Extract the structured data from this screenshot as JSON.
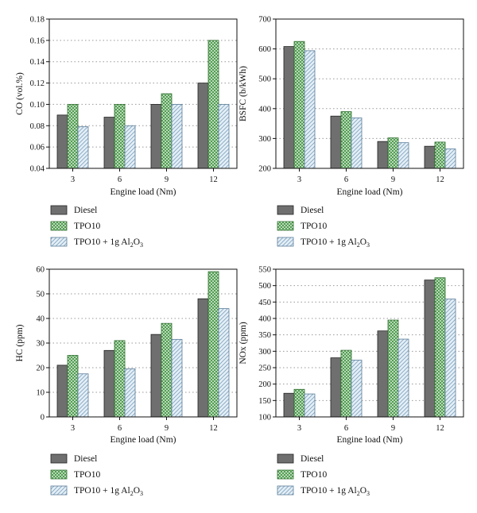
{
  "legend": {
    "items": [
      {
        "label": "Diesel",
        "sub": "",
        "tail": ""
      },
      {
        "label": "TPO10",
        "sub": "",
        "tail": ""
      },
      {
        "label": "TPO10 + 1g Al",
        "sub": "2",
        "tail": "O",
        "sub2": "3"
      }
    ]
  },
  "colors": {
    "diesel_fill": "#6f6f6f",
    "tpo10_fill": "#d6ecd6",
    "tpo10_hatch": "#3e8f3e",
    "al2o3_fill": "#e4eff6",
    "al2o3_hatch": "#7fa2c0",
    "grid": "#999999"
  },
  "chart_data": [
    {
      "type": "bar",
      "categories": [
        "3",
        "6",
        "9",
        "12"
      ],
      "xlabel": "Engine load (Nm)",
      "ylabel": "CO (vol.%)",
      "ylim": [
        0.04,
        0.18
      ],
      "yticks": [
        0.04,
        0.06,
        0.08,
        0.1,
        0.12,
        0.14,
        0.16,
        0.18
      ],
      "ytick_labels": [
        "0.04",
        "0.06",
        "0.08",
        "0.10",
        "0.12",
        "0.14",
        "0.16",
        "0.18"
      ],
      "grid": "horizontal dotted",
      "legend_position": "below",
      "series": [
        {
          "name": "Diesel",
          "values": [
            0.09,
            0.088,
            0.1,
            0.12
          ]
        },
        {
          "name": "TPO10",
          "values": [
            0.1,
            0.1,
            0.11,
            0.16
          ]
        },
        {
          "name": "TPO10 + 1g Al2O3",
          "values": [
            0.079,
            0.08,
            0.1,
            0.1
          ]
        }
      ]
    },
    {
      "type": "bar",
      "categories": [
        "3",
        "6",
        "9",
        "12"
      ],
      "xlabel": "Engine load (Nm)",
      "ylabel": "BSFC (b/kWh)",
      "ylim": [
        200,
        700
      ],
      "yticks": [
        200,
        300,
        400,
        500,
        600,
        700
      ],
      "ytick_labels": [
        "200",
        "300",
        "400",
        "500",
        "600",
        "700"
      ],
      "grid": "horizontal dotted",
      "legend_position": "below",
      "series": [
        {
          "name": "Diesel",
          "values": [
            608,
            375,
            290,
            274
          ]
        },
        {
          "name": "TPO10",
          "values": [
            625,
            390,
            302,
            288
          ]
        },
        {
          "name": "TPO10 + 1g Al2O3",
          "values": [
            594,
            369,
            286,
            265
          ]
        }
      ]
    },
    {
      "type": "bar",
      "categories": [
        "3",
        "6",
        "9",
        "12"
      ],
      "xlabel": "Engine load (Nm)",
      "ylabel": "HC (ppm)",
      "ylim": [
        0,
        60
      ],
      "yticks": [
        0,
        10,
        20,
        30,
        40,
        50,
        60
      ],
      "ytick_labels": [
        "0",
        "10",
        "20",
        "30",
        "40",
        "50",
        "60"
      ],
      "grid": "horizontal dotted",
      "legend_position": "below",
      "series": [
        {
          "name": "Diesel",
          "values": [
            21,
            27,
            33.5,
            48
          ]
        },
        {
          "name": "TPO10",
          "values": [
            25,
            31,
            38,
            59
          ]
        },
        {
          "name": "TPO10 + 1g Al2O3",
          "values": [
            17.5,
            19.5,
            31.5,
            44
          ]
        }
      ]
    },
    {
      "type": "bar",
      "categories": [
        "3",
        "6",
        "9",
        "12"
      ],
      "xlabel": "Engine load (Nm)",
      "ylabel": "NOx (ppm)",
      "ylim": [
        100,
        550
      ],
      "yticks": [
        100,
        150,
        200,
        250,
        300,
        350,
        400,
        450,
        500,
        550
      ],
      "ytick_labels": [
        "100",
        "150",
        "200",
        "250",
        "300",
        "350",
        "400",
        "450",
        "500",
        "550"
      ],
      "grid": "horizontal dotted",
      "legend_position": "below",
      "series": [
        {
          "name": "Diesel",
          "values": [
            172,
            280,
            362,
            517
          ]
        },
        {
          "name": "TPO10",
          "values": [
            184,
            303,
            395,
            524
          ]
        },
        {
          "name": "TPO10 + 1g Al2O3",
          "values": [
            170,
            273,
            337,
            459
          ]
        }
      ]
    }
  ]
}
